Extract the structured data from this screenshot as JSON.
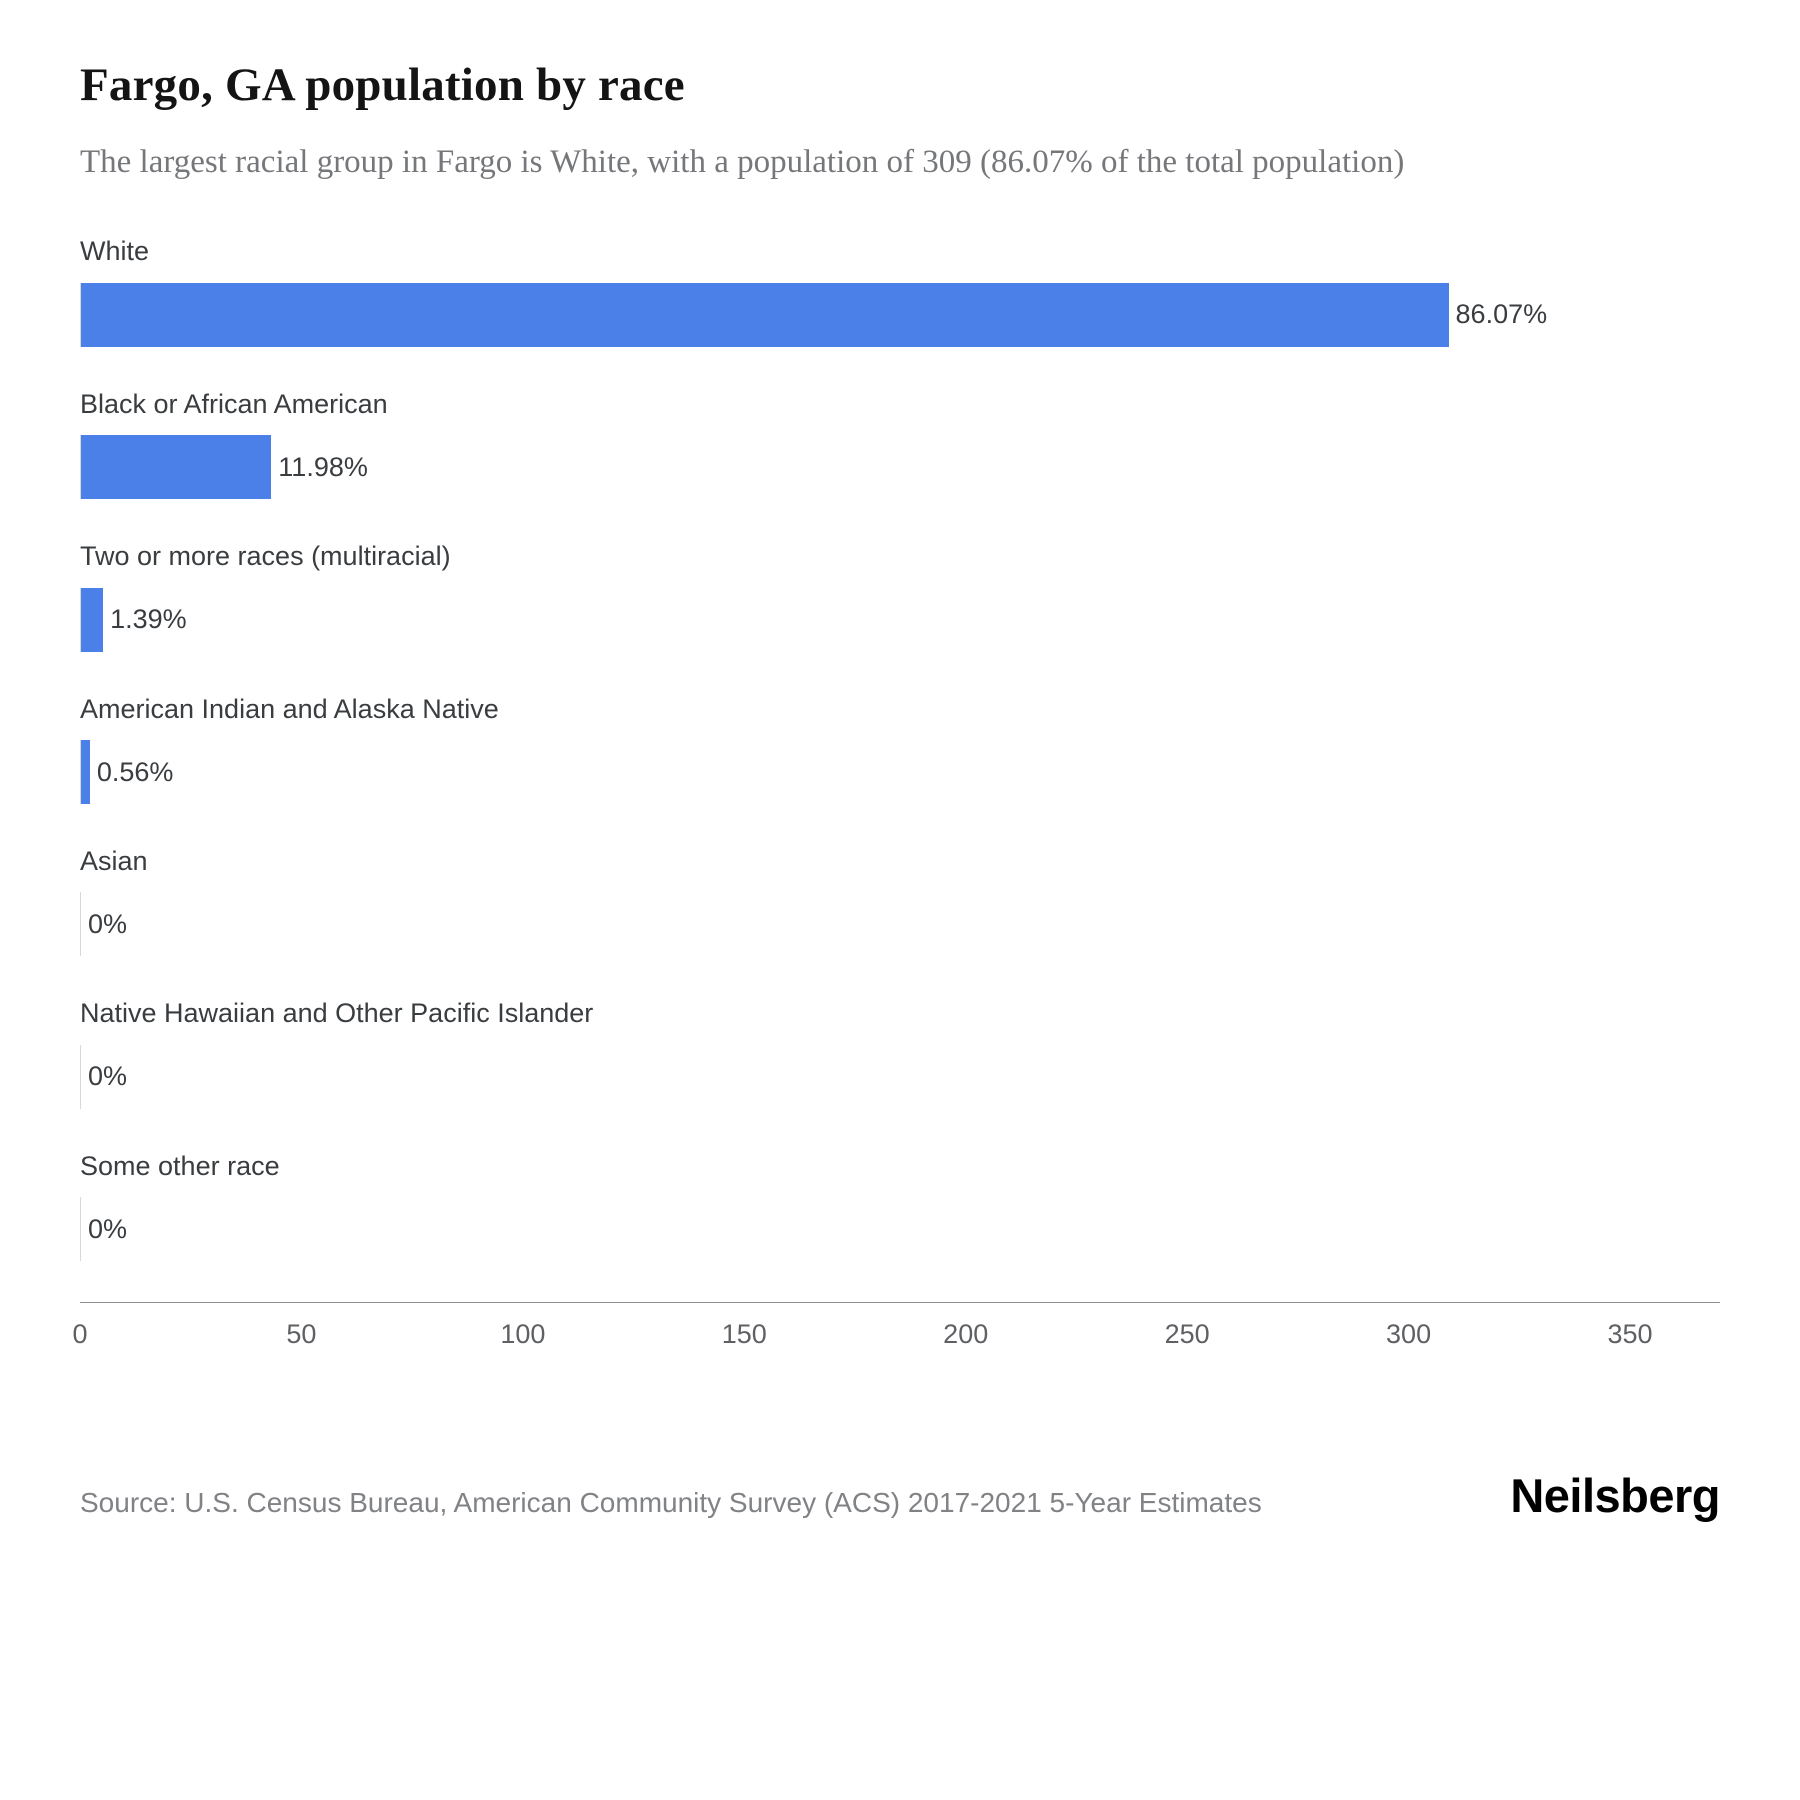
{
  "header": {
    "title": "Fargo, GA population by race",
    "subtitle": "The largest racial group in Fargo is White, with a population of 309 (86.07% of the total population)"
  },
  "chart_data": {
    "type": "bar",
    "orientation": "horizontal",
    "title": "Fargo, GA population by race",
    "xlabel": "",
    "ylabel": "",
    "xlim": [
      0,
      350
    ],
    "x_ticks": [
      0,
      50,
      100,
      150,
      200,
      250,
      300,
      350
    ],
    "grid": false,
    "legend": false,
    "bar_color": "#4b80e8",
    "categories": [
      "White",
      "Black or African American",
      "Two or more races (multiracial)",
      "American Indian and Alaska Native",
      "Asian",
      "Native Hawaiian and Other Pacific Islander",
      "Some other race"
    ],
    "values": [
      309,
      43,
      5,
      2,
      0,
      0,
      0
    ],
    "value_labels": [
      "86.07%",
      "11.98%",
      "1.39%",
      "0.56%",
      "0%",
      "0%",
      "0%"
    ]
  },
  "footer": {
    "source": "Source: U.S. Census Bureau, American Community Survey (ACS) 2017-2021 5-Year Estimates",
    "brand": "Neilsberg"
  }
}
